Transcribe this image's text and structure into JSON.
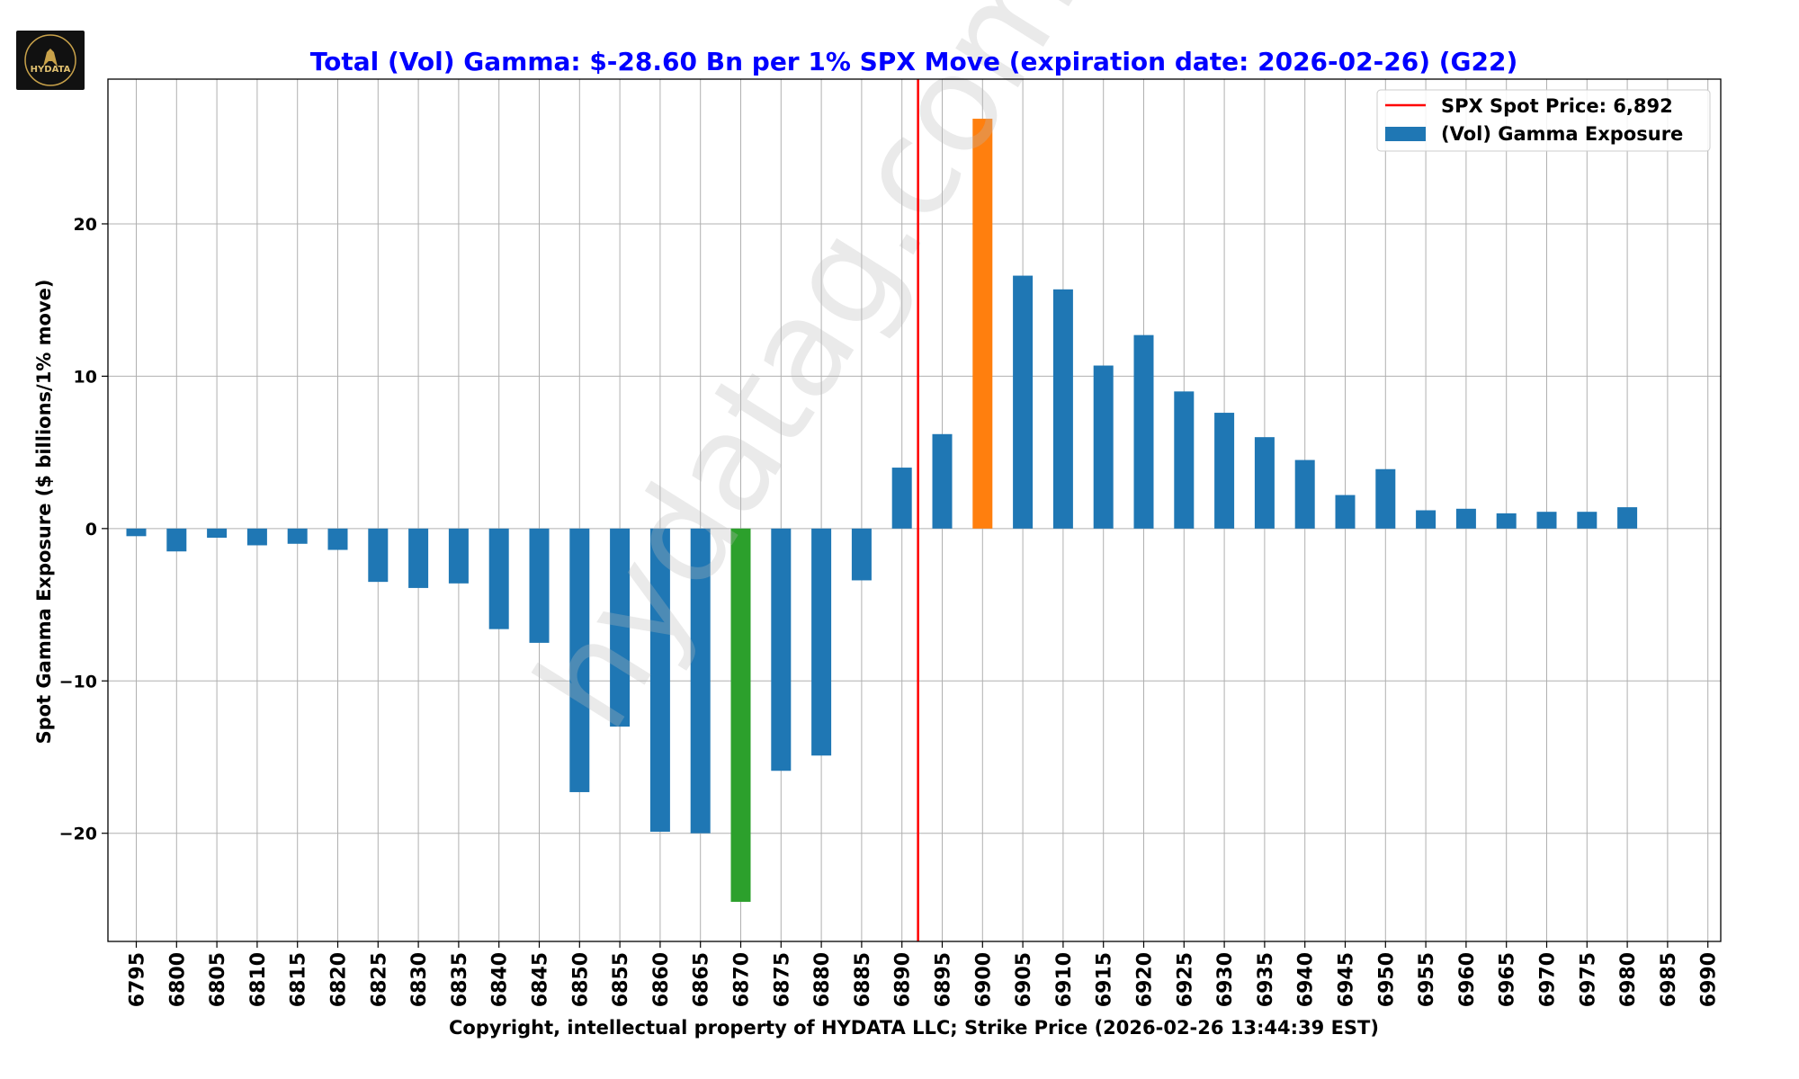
{
  "logo": {
    "text": "HYDATA",
    "icon": "wolf-logo"
  },
  "watermark": "hydatag.com",
  "chart_data": {
    "type": "bar",
    "title": "Total (Vol) Gamma: $-28.60 Bn per 1% SPX Move (expiration date: 2026-02-26) (G22)",
    "xlabel": "Copyright, intellectual property of HYDATA LLC; Strike Price (2026-02-26 13:44:39 EST)",
    "ylabel": "Spot Gamma Exposure ($ billions/1% move)",
    "ylim": [
      -27.1,
      29.5
    ],
    "yticks": [
      -20,
      -10,
      0,
      10,
      20
    ],
    "ytick_labels": [
      "−20",
      "−10",
      "0",
      "10",
      "20"
    ],
    "grid": true,
    "legend_placement": "top-right",
    "categories": [
      "6795",
      "6800",
      "6805",
      "6810",
      "6815",
      "6820",
      "6825",
      "6830",
      "6835",
      "6840",
      "6845",
      "6850",
      "6855",
      "6860",
      "6865",
      "6870",
      "6875",
      "6880",
      "6885",
      "6890",
      "6895",
      "6900",
      "6905",
      "6910",
      "6915",
      "6920",
      "6925",
      "6930",
      "6935",
      "6940",
      "6945",
      "6950",
      "6955",
      "6960",
      "6965",
      "6970",
      "6975",
      "6980",
      "6985",
      "6990"
    ],
    "series": [
      {
        "name": "(Vol) Gamma Exposure",
        "color": "#1f77b4",
        "values": [
          -0.5,
          -1.5,
          -0.6,
          -1.1,
          -1.0,
          -1.4,
          -3.5,
          -3.9,
          -3.6,
          -6.6,
          -7.5,
          -17.3,
          -13.0,
          -19.9,
          -20.0,
          -24.5,
          -15.9,
          -14.9,
          -3.4,
          4.0,
          6.2,
          26.9,
          16.6,
          15.7,
          10.7,
          12.7,
          9.0,
          7.6,
          6.0,
          4.5,
          2.2,
          3.9,
          1.2,
          1.3,
          1.0,
          1.1,
          1.1,
          1.4,
          0,
          0
        ]
      }
    ],
    "highlights": [
      {
        "category": "6900",
        "color": "#ff7f0e"
      },
      {
        "category": "6870",
        "color": "#2ca02c"
      }
    ],
    "spot_line": {
      "name": "SPX Spot Price: 6,892",
      "value": 6892,
      "color": "#ff0000"
    },
    "title_color": "#0000ff"
  }
}
